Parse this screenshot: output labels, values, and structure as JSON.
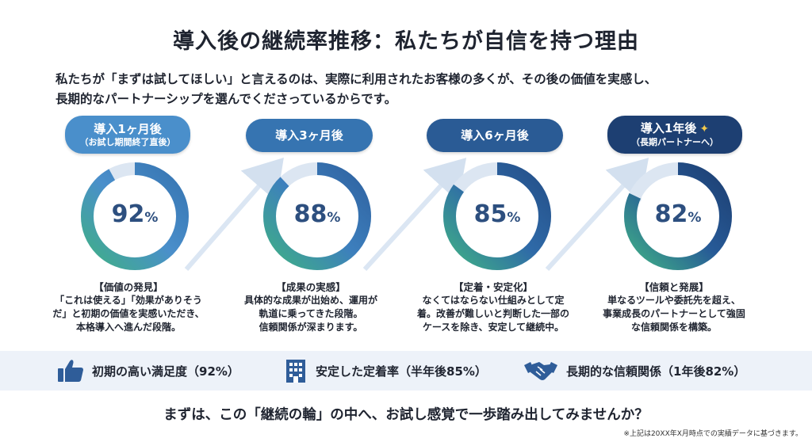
{
  "title": "導入後の継続率推移：私たちが自信を持つ理由",
  "intro": {
    "line1": "私たちが「まずは試してほしい」と言えるのは、実際に利用されたお客様の多くが、その後の価値を実感し、",
    "line2": "長期的なパートナーシップを選んでくださっているからです。"
  },
  "stages": [
    {
      "label": "導入1ヶ月後",
      "sublabel": "（お試し期間終了直後）",
      "percent": 92,
      "percent_text": "92",
      "unit": "%",
      "heading": "【価値の発見】",
      "lines": [
        "「これは使える」「効果がありそう",
        "だ」と初期の価値を実感いただき、",
        "本格導入へ進んだ段階。"
      ]
    },
    {
      "label": "導入3ヶ月後",
      "percent": 88,
      "percent_text": "88",
      "unit": "%",
      "heading": "【成果の実感】",
      "lines": [
        "具体的な成果が出始め、運用が",
        "軌道に乗ってきた段階。",
        "信頼関係が深まります。"
      ]
    },
    {
      "label": "導入6ヶ月後",
      "percent": 85,
      "percent_text": "85",
      "unit": "%",
      "heading": "【定着・安定化】",
      "lines": [
        "なくてはならない仕組みとして定",
        "着。改善が難しいと判断した一部の",
        "ケースを除き、安定して継続中。"
      ]
    },
    {
      "label": "導入1年後",
      "sublabel": "（長期パートナーへ）",
      "sparkle": "✦",
      "percent": 82,
      "percent_text": "82",
      "unit": "%",
      "heading": "【信頼と発展】",
      "lines": [
        "単なるツールや委託先を超え、",
        "事業成長のパートナーとして強固",
        "な信頼関係を構築。"
      ]
    }
  ],
  "features": [
    {
      "icon": "thumbs-up-icon",
      "text": "初期の高い満足度（92%）"
    },
    {
      "icon": "building-icon",
      "text": "安定した定着率（半年後85%）"
    },
    {
      "icon": "handshake-icon",
      "text": "長期的な信頼関係（1年後82%）"
    }
  ],
  "cta": "まずは、この「継続の輪」の中へ、お試し感覚で一歩踏み出してみませんか？",
  "note": "※上記は20XX年X月時点での実績データに基づきます。",
  "colors": {
    "pill1": "#4a8fcb",
    "pill2": "#3674b1",
    "pill3": "#2a5b95",
    "pill4": "#1d3f72",
    "ring_track": "#dce6f2",
    "ring_start": "#4a8fcb",
    "ring_end": "#3faf86",
    "percent_text": "#2d4f7f",
    "band": "#edf2f9",
    "icon": "#2f5d99",
    "sparkle": "#f2c94c"
  }
}
